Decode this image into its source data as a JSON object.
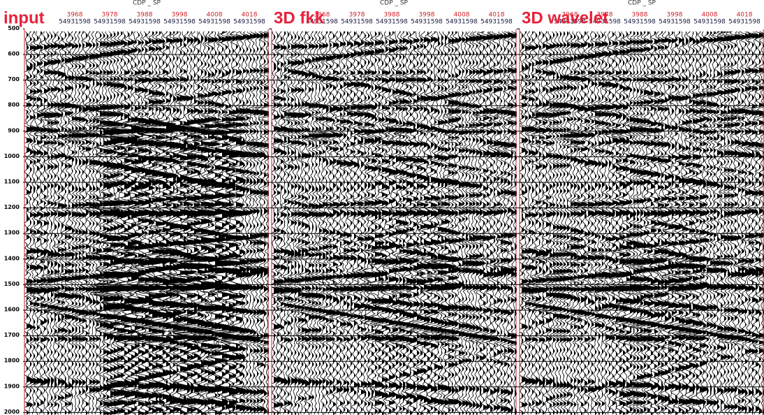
{
  "time_axis": {
    "ticks": [
      500,
      600,
      700,
      800,
      900,
      1000,
      1100,
      1200,
      1300,
      1400,
      1500,
      1600,
      1700,
      1800,
      1900,
      2000
    ]
  },
  "panels": [
    {
      "title": "input",
      "header": "CDP _ SP",
      "cdp": [
        3968,
        3978,
        3988,
        3998,
        4008,
        4018
      ],
      "sp": [
        54931598,
        54931598,
        54931598,
        54931598,
        54931598,
        54931598
      ]
    },
    {
      "title": "3D fkk",
      "header": "CDP _ SP",
      "cdp": [
        3968,
        3978,
        3988,
        3998,
        4008,
        4018
      ],
      "sp": [
        54931598,
        54931598,
        54931598,
        54931598,
        54931598,
        54931598
      ]
    },
    {
      "title": "3D wavelet",
      "header": "CDP _ SP",
      "cdp": [
        3968,
        3978,
        3988,
        3998,
        4008,
        4018
      ],
      "sp": [
        54931598,
        54931598,
        54931598,
        54931598,
        54931598,
        54931598
      ]
    }
  ]
}
